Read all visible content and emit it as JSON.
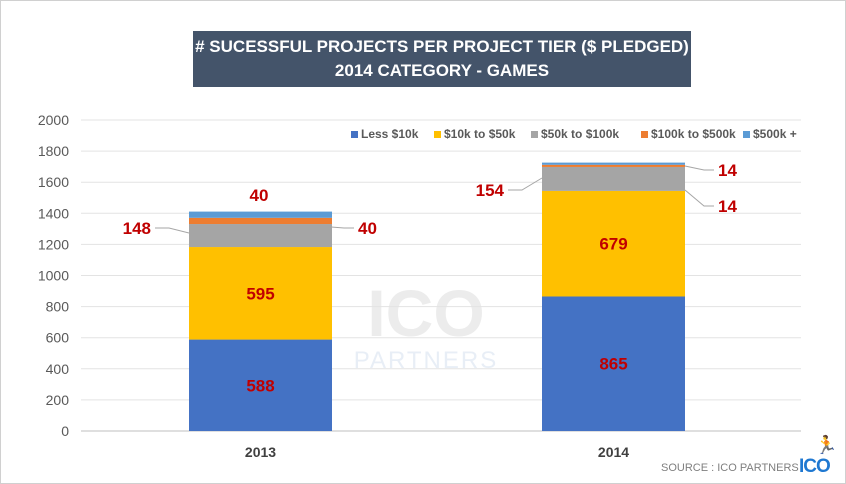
{
  "chart_data": {
    "type": "bar",
    "stacked": true,
    "title": [
      "# SUCESSFUL PROJECTS PER PROJECT TIER ($ PLEDGED)",
      "2014 CATEGORY - GAMES"
    ],
    "categories": [
      "2013",
      "2014"
    ],
    "ylim": [
      0,
      2000
    ],
    "yticks": [
      0,
      200,
      400,
      600,
      800,
      1000,
      1200,
      1400,
      1600,
      1800,
      2000
    ],
    "grid": true,
    "legend_position": "top-right",
    "series": [
      {
        "name": "Less $10k",
        "values": [
          588,
          865
        ],
        "color": "#4472c4"
      },
      {
        "name": "$10k to $50k",
        "values": [
          595,
          679
        ],
        "color": "#ffc000"
      },
      {
        "name": "$50k to $100k",
        "values": [
          148,
          154
        ],
        "color": "#a5a5a5"
      },
      {
        "name": "$100k to $500k",
        "values": [
          40,
          14
        ],
        "color": "#ed7d31"
      },
      {
        "name": "$500k +",
        "values": [
          40,
          14
        ],
        "color": "#5b9bd5"
      }
    ],
    "label_color": "#c00000"
  },
  "source": "SOURCE : ICO PARTNERS",
  "logo": "ICO",
  "watermark": "ICO PARTNERS"
}
